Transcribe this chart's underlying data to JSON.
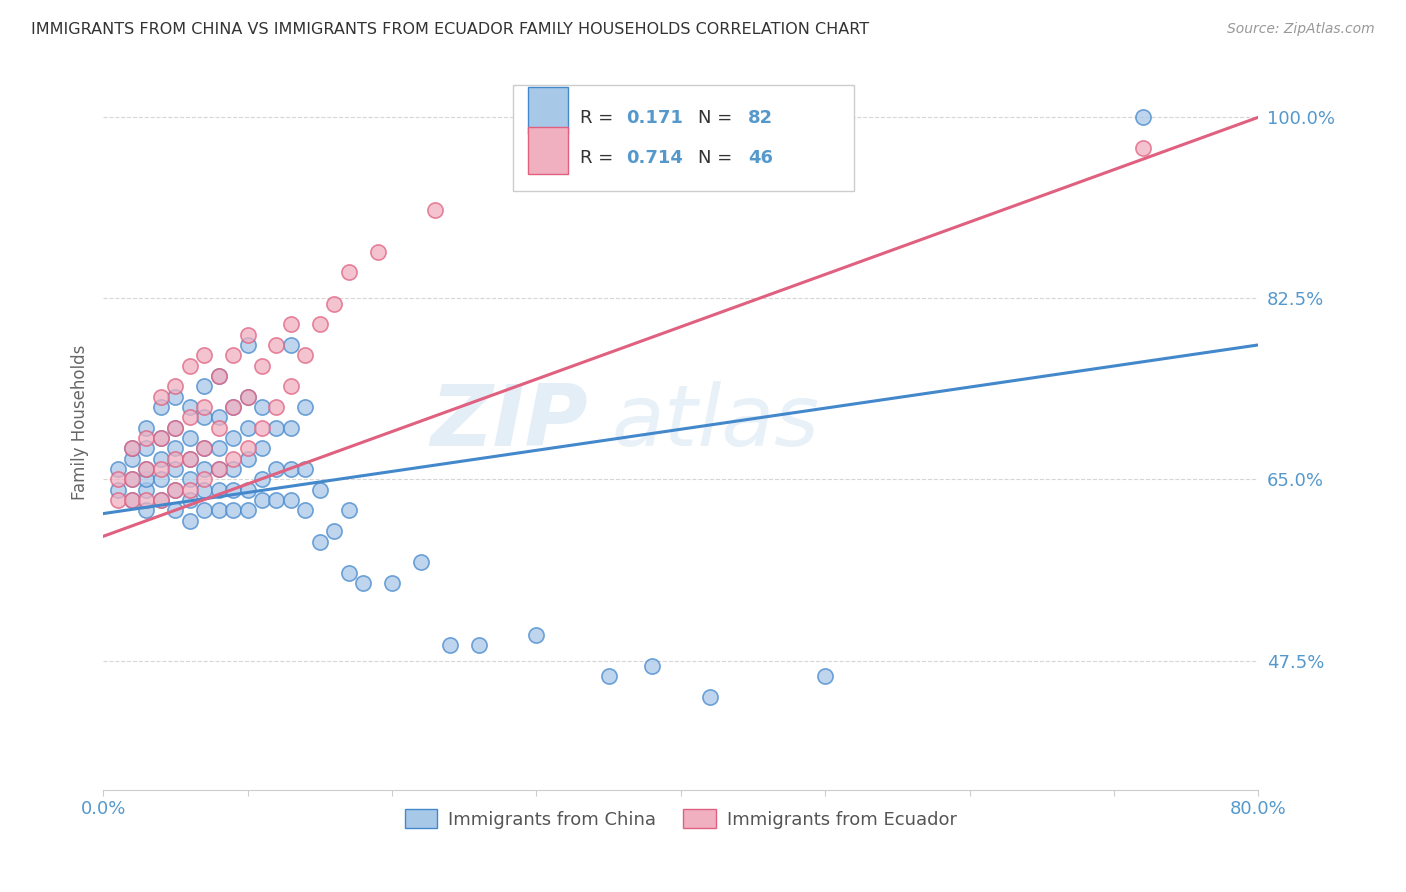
{
  "title": "IMMIGRANTS FROM CHINA VS IMMIGRANTS FROM ECUADOR FAMILY HOUSEHOLDS CORRELATION CHART",
  "source": "Source: ZipAtlas.com",
  "ylabel": "Family Households",
  "y_ticks": [
    "47.5%",
    "65.0%",
    "82.5%",
    "100.0%"
  ],
  "y_tick_vals": [
    0.475,
    0.65,
    0.825,
    1.0
  ],
  "x_lim": [
    0.0,
    0.8
  ],
  "y_lim": [
    0.35,
    1.06
  ],
  "legend_china_r": "0.171",
  "legend_china_n": "82",
  "legend_ecuador_r": "0.714",
  "legend_ecuador_n": "46",
  "color_china": "#a8c8e8",
  "color_ecuador": "#f0b0c0",
  "color_china_line": "#4488cc",
  "color_ecuador_line": "#e06080",
  "china_scatter_x": [
    0.01,
    0.01,
    0.02,
    0.02,
    0.02,
    0.02,
    0.03,
    0.03,
    0.03,
    0.03,
    0.03,
    0.03,
    0.04,
    0.04,
    0.04,
    0.04,
    0.04,
    0.05,
    0.05,
    0.05,
    0.05,
    0.05,
    0.05,
    0.06,
    0.06,
    0.06,
    0.06,
    0.06,
    0.06,
    0.07,
    0.07,
    0.07,
    0.07,
    0.07,
    0.07,
    0.08,
    0.08,
    0.08,
    0.08,
    0.08,
    0.08,
    0.09,
    0.09,
    0.09,
    0.09,
    0.09,
    0.1,
    0.1,
    0.1,
    0.1,
    0.1,
    0.1,
    0.11,
    0.11,
    0.11,
    0.11,
    0.12,
    0.12,
    0.12,
    0.13,
    0.13,
    0.13,
    0.13,
    0.14,
    0.14,
    0.14,
    0.15,
    0.15,
    0.16,
    0.17,
    0.17,
    0.18,
    0.2,
    0.22,
    0.24,
    0.26,
    0.3,
    0.35,
    0.38,
    0.42,
    0.5,
    0.72
  ],
  "china_scatter_y": [
    0.64,
    0.66,
    0.63,
    0.65,
    0.67,
    0.68,
    0.62,
    0.64,
    0.65,
    0.66,
    0.68,
    0.7,
    0.63,
    0.65,
    0.67,
    0.69,
    0.72,
    0.62,
    0.64,
    0.66,
    0.68,
    0.7,
    0.73,
    0.61,
    0.63,
    0.65,
    0.67,
    0.69,
    0.72,
    0.62,
    0.64,
    0.66,
    0.68,
    0.71,
    0.74,
    0.62,
    0.64,
    0.66,
    0.68,
    0.71,
    0.75,
    0.62,
    0.64,
    0.66,
    0.69,
    0.72,
    0.62,
    0.64,
    0.67,
    0.7,
    0.73,
    0.78,
    0.63,
    0.65,
    0.68,
    0.72,
    0.63,
    0.66,
    0.7,
    0.63,
    0.66,
    0.7,
    0.78,
    0.62,
    0.66,
    0.72,
    0.59,
    0.64,
    0.6,
    0.56,
    0.62,
    0.55,
    0.55,
    0.57,
    0.49,
    0.49,
    0.5,
    0.46,
    0.47,
    0.44,
    0.46,
    1.0
  ],
  "ecuador_scatter_x": [
    0.01,
    0.01,
    0.02,
    0.02,
    0.02,
    0.03,
    0.03,
    0.03,
    0.04,
    0.04,
    0.04,
    0.04,
    0.05,
    0.05,
    0.05,
    0.05,
    0.06,
    0.06,
    0.06,
    0.06,
    0.07,
    0.07,
    0.07,
    0.07,
    0.08,
    0.08,
    0.08,
    0.09,
    0.09,
    0.09,
    0.1,
    0.1,
    0.1,
    0.11,
    0.11,
    0.12,
    0.12,
    0.13,
    0.13,
    0.14,
    0.15,
    0.16,
    0.17,
    0.19,
    0.23,
    0.72
  ],
  "ecuador_scatter_y": [
    0.63,
    0.65,
    0.63,
    0.65,
    0.68,
    0.63,
    0.66,
    0.69,
    0.63,
    0.66,
    0.69,
    0.73,
    0.64,
    0.67,
    0.7,
    0.74,
    0.64,
    0.67,
    0.71,
    0.76,
    0.65,
    0.68,
    0.72,
    0.77,
    0.66,
    0.7,
    0.75,
    0.67,
    0.72,
    0.77,
    0.68,
    0.73,
    0.79,
    0.7,
    0.76,
    0.72,
    0.78,
    0.74,
    0.8,
    0.77,
    0.8,
    0.82,
    0.85,
    0.87,
    0.91,
    0.97
  ],
  "watermark_zip": "ZIP",
  "watermark_atlas": "atlas",
  "legend_box_color": "#ffffff",
  "grid_color": "#cccccc",
  "title_color": "#333333",
  "axis_color": "#5599cc",
  "bottom_legend_china": "Immigrants from China",
  "bottom_legend_ecuador": "Immigrants from Ecuador",
  "china_line_x": [
    0.0,
    0.8
  ],
  "china_line_y": [
    0.617,
    0.78
  ],
  "ecuador_line_x": [
    0.0,
    0.8
  ],
  "ecuador_line_y": [
    0.595,
    1.0
  ]
}
